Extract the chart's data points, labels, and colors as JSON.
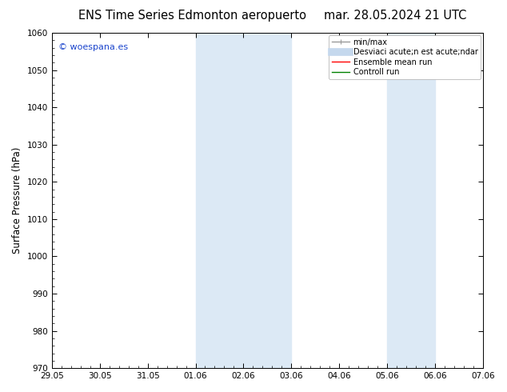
{
  "title_left": "ENS Time Series Edmonton aeropuerto",
  "title_right": "mar. 28.05.2024 21 UTC",
  "ylabel": "Surface Pressure (hPa)",
  "ylim": [
    970,
    1060
  ],
  "yticks": [
    970,
    980,
    990,
    1000,
    1010,
    1020,
    1030,
    1040,
    1050,
    1060
  ],
  "xtick_labels": [
    "29.05",
    "30.05",
    "31.05",
    "01.06",
    "02.06",
    "03.06",
    "04.06",
    "05.06",
    "06.06",
    "07.06"
  ],
  "xtick_positions": [
    0,
    1,
    2,
    3,
    4,
    5,
    6,
    7,
    8,
    9
  ],
  "shaded_regions": [
    {
      "start": 3,
      "end": 4,
      "color": "#dce9f5"
    },
    {
      "start": 4,
      "end": 5,
      "color": "#dce9f5"
    },
    {
      "start": 7,
      "end": 8,
      "color": "#dce9f5"
    }
  ],
  "watermark_text": "© woespana.es",
  "watermark_color": "#1a44cc",
  "bg_color": "#ffffff",
  "plot_bg_color": "#ffffff",
  "legend_entries": [
    {
      "label": "min/max",
      "color": "#999999",
      "linewidth": 1.0
    },
    {
      "label": "Desviaci acute;n est acute;ndar",
      "color": "#c5d8ed",
      "linewidth": 7
    },
    {
      "label": "Ensemble mean run",
      "color": "#ff0000",
      "linewidth": 1.0
    },
    {
      "label": "Controll run",
      "color": "#008000",
      "linewidth": 1.0
    }
  ],
  "title_fontsize": 10.5,
  "axis_label_fontsize": 8.5,
  "tick_fontsize": 7.5,
  "legend_fontsize": 7.0
}
